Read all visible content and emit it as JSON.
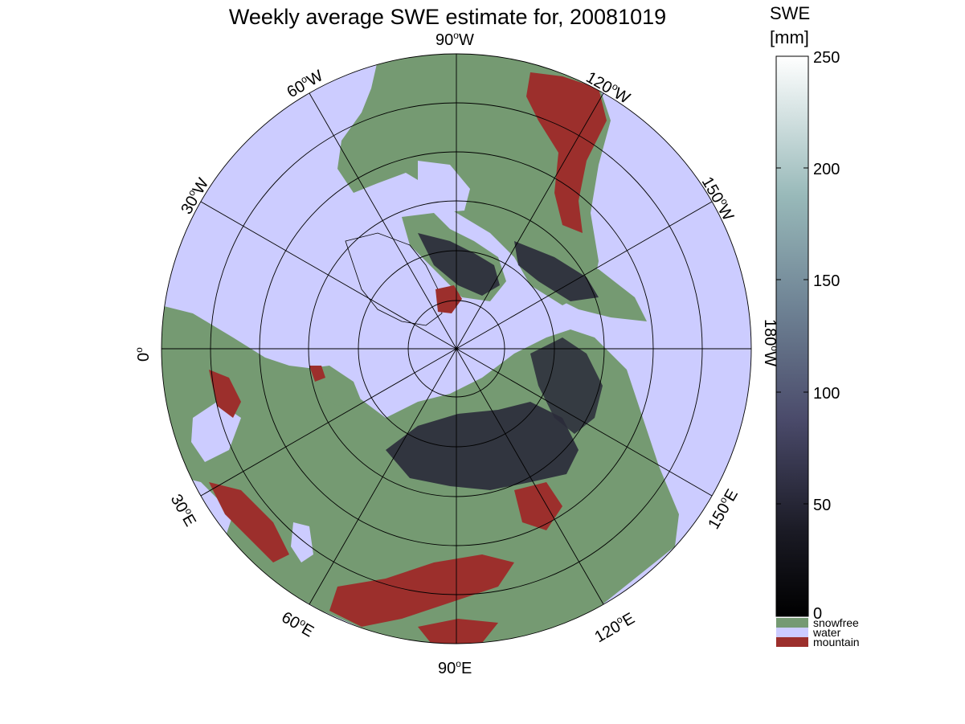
{
  "title": "Weekly average SWE estimate for, 20081019",
  "colorbar": {
    "unit_line1": "SWE",
    "unit_line2": "[mm]",
    "ticks": [
      "250",
      "200",
      "150",
      "100",
      "50",
      "0"
    ],
    "categories": [
      {
        "label": "snowfree",
        "color": "#759a72"
      },
      {
        "label": "water",
        "color": "#ccccff"
      },
      {
        "label": "mountain",
        "color": "#9c2f2c"
      }
    ]
  },
  "meridian_labels": {
    "w90": {
      "base": "90",
      "dir": "W"
    },
    "w120": {
      "base": "120",
      "dir": "W"
    },
    "w150": {
      "base": "150",
      "dir": "W"
    },
    "lon180": {
      "base": "180",
      "dir": "W"
    },
    "e150": {
      "base": "150",
      "dir": "E"
    },
    "e120": {
      "base": "120",
      "dir": "E"
    },
    "e90": {
      "base": "90",
      "dir": "E"
    },
    "e60": {
      "base": "60",
      "dir": "E"
    },
    "e30": {
      "base": "30",
      "dir": "E"
    },
    "lon0": {
      "base": "0",
      "dir": ""
    },
    "w30": {
      "base": "30",
      "dir": "W"
    },
    "w60": {
      "base": "60",
      "dir": "W"
    }
  },
  "colors": {
    "snowfree": "#759a72",
    "water": "#ccccff",
    "mountain": "#9c2f2c",
    "snow_dark": "#2a2a3a"
  }
}
